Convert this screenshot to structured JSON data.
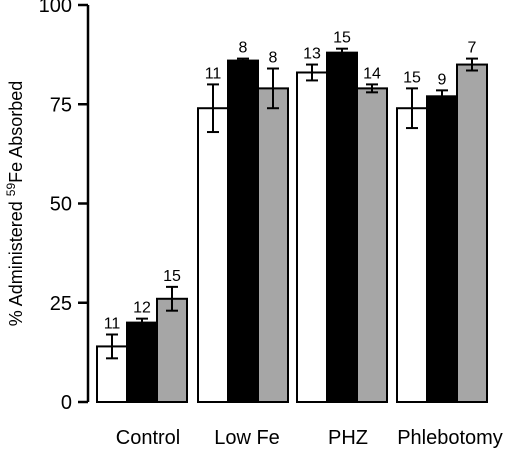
{
  "chart_data": {
    "type": "bar",
    "title": "",
    "xlabel": "",
    "ylabel": "% Administered 59Fe Absorbed",
    "ylabel_parts": {
      "prefix": "% Administered ",
      "superscript": "59",
      "suffix": "Fe Absorbed"
    },
    "ylim": [
      0,
      100
    ],
    "yticks": [
      "0",
      "25",
      "50",
      "75",
      "100"
    ],
    "grid": false,
    "categories": [
      "Control",
      "Low Fe",
      "PHZ",
      "Phlebotomy"
    ],
    "series": [
      {
        "color": "#ffffff",
        "values": [
          14,
          74,
          83,
          74
        ],
        "errors": [
          3,
          6,
          2,
          5
        ],
        "n": [
          "11",
          "11",
          "13",
          "15"
        ]
      },
      {
        "color": "#000000",
        "values": [
          20,
          86,
          88,
          77
        ],
        "errors": [
          1,
          0.5,
          1,
          1.5
        ],
        "n": [
          "12",
          "8",
          "15",
          "9"
        ]
      },
      {
        "color": "#a6a6a6",
        "values": [
          26,
          79,
          79,
          85
        ],
        "errors": [
          3,
          5,
          1,
          1.5
        ],
        "n": [
          "15",
          "8",
          "14",
          "7"
        ]
      }
    ]
  }
}
